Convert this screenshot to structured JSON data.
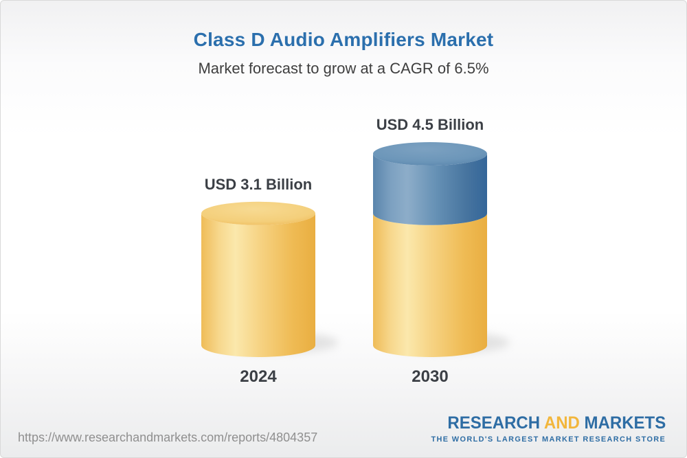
{
  "header": {
    "title": "Class D Audio Amplifiers Market",
    "subtitle": "Market forecast to grow at a CAGR of 6.5%"
  },
  "chart_data": {
    "type": "bar",
    "style": "3d-cylinder-stacked",
    "categories": [
      "2024",
      "2030"
    ],
    "series": [
      {
        "name": "market-size-base",
        "color_key": "gold",
        "color": "#F3CB76",
        "values": [
          3.1,
          3.1
        ]
      },
      {
        "name": "forecast-growth",
        "color_key": "blue",
        "color": "#5988B1",
        "values": [
          0,
          1.4
        ]
      }
    ],
    "totals": [
      3.1,
      4.5
    ],
    "bar_labels": [
      "USD 3.1 Billion",
      "USD 4.5 Billion"
    ],
    "unit": "USD Billion",
    "cagr": "6.5%",
    "ylim": [
      0,
      5
    ],
    "grid": false,
    "legend": false
  },
  "footer": {
    "url": "https://www.researchandmarkets.com/reports/4804357",
    "logo": {
      "word_research": "RESEARCH",
      "word_and": "AND",
      "word_markets": "MARKETS",
      "tagline": "THE WORLD'S LARGEST MARKET RESEARCH STORE"
    }
  },
  "colors": {
    "title_blue": "#2B6FAD",
    "subtitle_gray": "#3E3E3E",
    "label_dark": "#3B3F45",
    "url_gray": "#8F8F8F",
    "brand_blue": "#2E6DA4",
    "brand_gold": "#F2B63C",
    "bar_gold": "#F3CB76",
    "bar_blue": "#5988B1"
  }
}
